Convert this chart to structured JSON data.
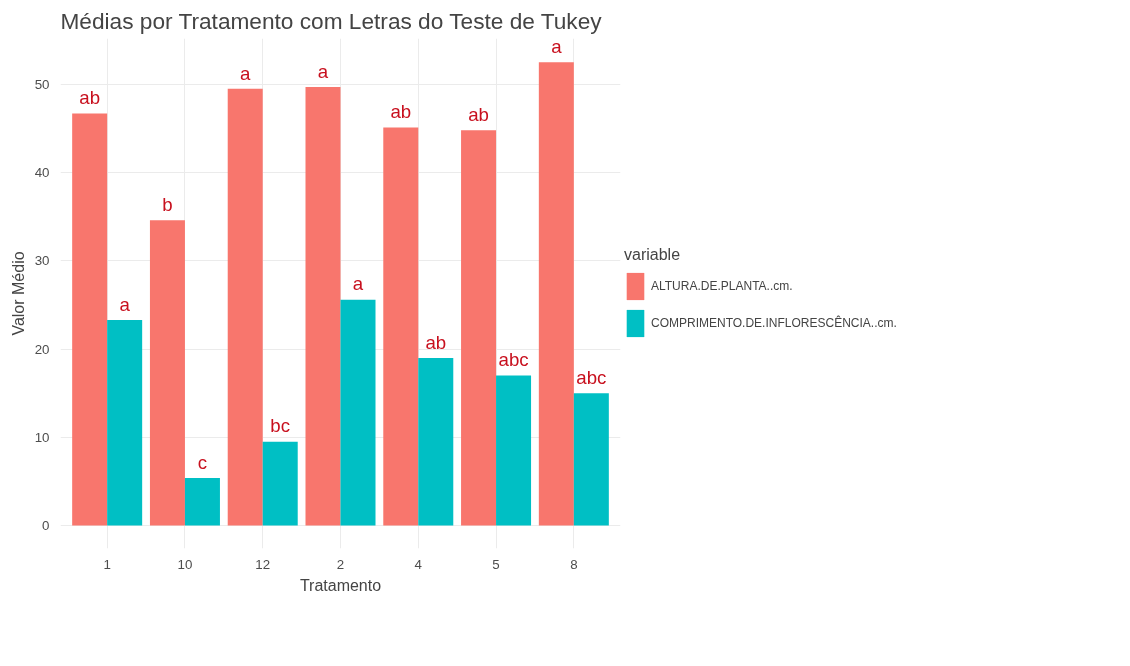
{
  "chart_data": {
    "type": "bar",
    "title": "Médias por Tratamento com Letras do Teste de Tukey",
    "xlabel": "Tratamento",
    "ylabel": "Valor Médio",
    "legend_title": "variable",
    "categories": [
      "1",
      "10",
      "12",
      "2",
      "4",
      "5",
      "8"
    ],
    "series": [
      {
        "name": "ALTURA.DE.PLANTA..cm.",
        "color": "#f8766d",
        "values": [
          46.7,
          34.6,
          49.5,
          49.7,
          45.1,
          44.8,
          52.5
        ],
        "value_labels": [
          "ab",
          "b",
          "a",
          "a",
          "ab",
          "ab",
          "a"
        ]
      },
      {
        "name": "COMPRIMENTO.DE.INFLORESCÊNCIA..cm.",
        "color": "#00bfc4",
        "values": [
          23.3,
          5.4,
          9.5,
          25.6,
          19.0,
          17.0,
          15.0
        ],
        "value_labels": [
          "a",
          "c",
          "bc",
          "a",
          "ab",
          "abc",
          "abc"
        ]
      }
    ],
    "ylim": [
      -2.6,
      55.2
    ],
    "yticks": [
      0,
      10,
      20,
      30,
      40,
      50
    ],
    "grid": true,
    "legend": "right"
  }
}
